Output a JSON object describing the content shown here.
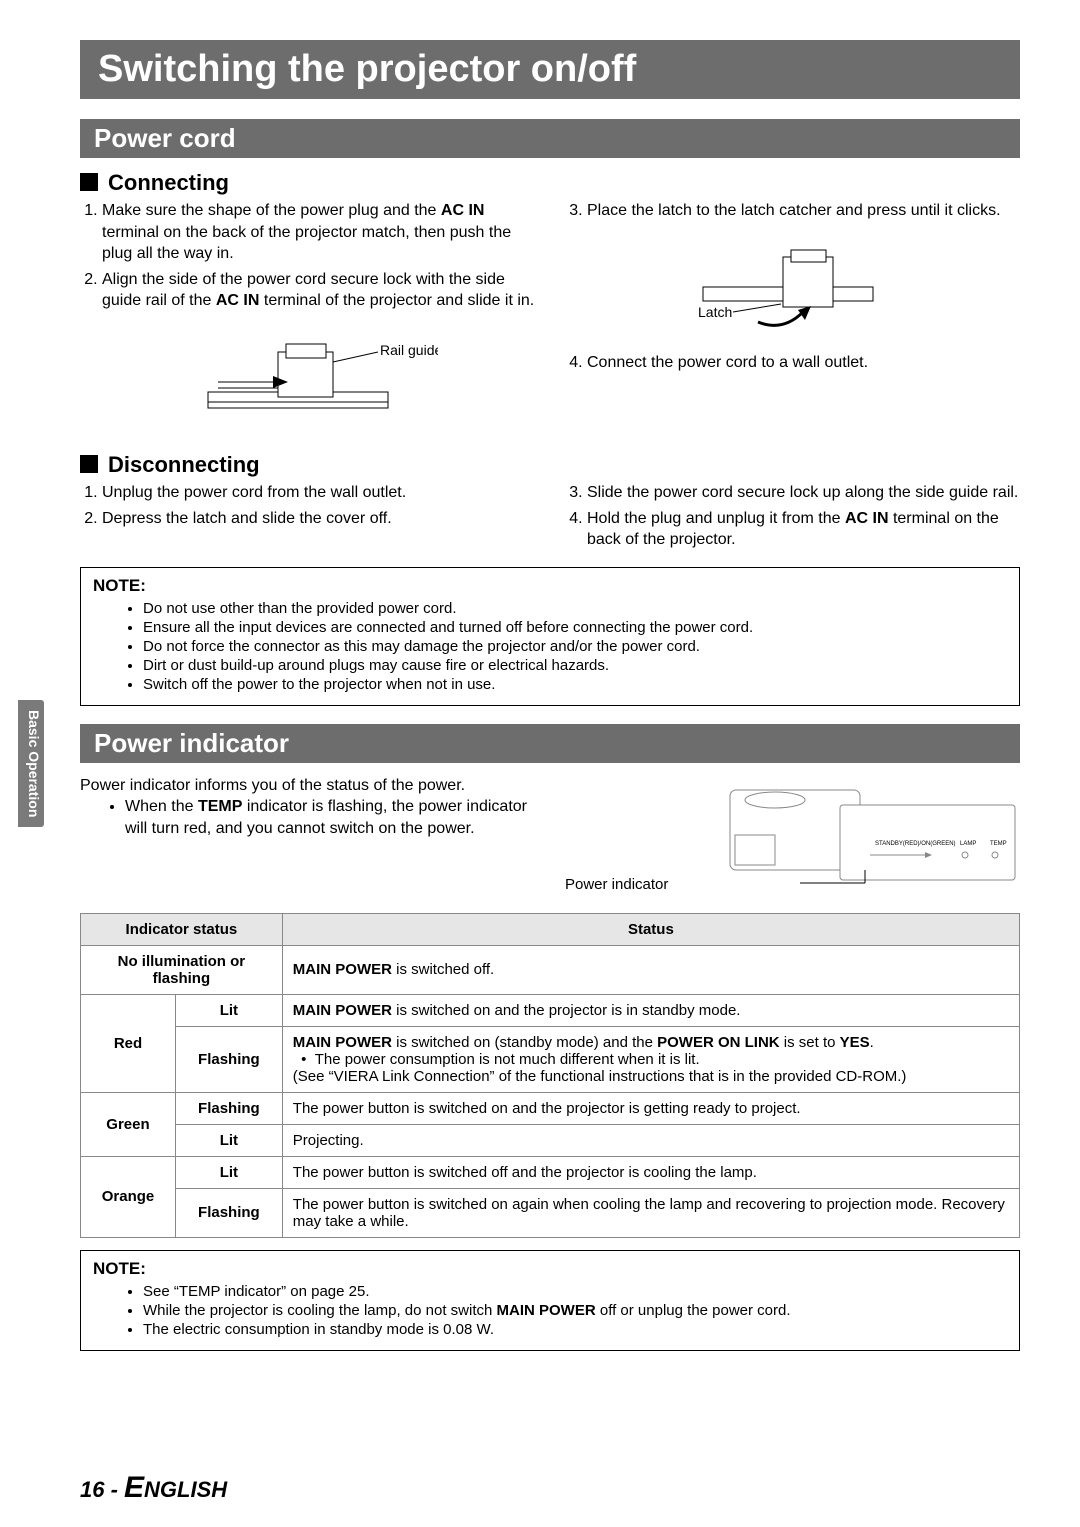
{
  "sideTab": "Basic Operation",
  "title": "Switching the projector on/off",
  "section1": {
    "bar": "Power cord",
    "connecting": {
      "heading": "Connecting",
      "figLabel1": "Rail guide",
      "figLabel2": "Latch",
      "leftItems": [
        "Make sure the shape of the power plug and the <b>AC IN</b> terminal on the back of the projector match, then push the plug all the way in.",
        "Align the side of the power cord secure lock with the side guide rail of the <b>AC IN</b> terminal of the projector and slide it in."
      ],
      "rightItems": [
        "Place the latch to the latch catcher and press until it clicks.",
        "Connect the power cord to a wall outlet."
      ]
    },
    "disconnecting": {
      "heading": "Disconnecting",
      "leftItems": [
        "Unplug the power cord from the wall outlet.",
        "Depress the latch and slide the cover off."
      ],
      "rightItems": [
        "Slide the power cord secure lock up along the side guide rail.",
        "Hold the plug and unplug it from the <b>AC IN</b> terminal on the back of the projector."
      ]
    },
    "note": {
      "title": "NOTE:",
      "items": [
        "Do not use other than the provided power cord.",
        "Ensure all the input devices are connected and turned off before connecting the power cord.",
        "Do not force the connector as this may damage the projector and/or the power cord.",
        "Dirt or dust build-up around plugs may cause fire or electrical hazards.",
        "Switch off the power to the projector when not in use."
      ]
    }
  },
  "section2": {
    "bar": "Power indicator",
    "intro": "Power indicator informs you of the status of the power.",
    "bullet": "When the <b>TEMP</b> indicator is flashing, the power indicator will turn red, and you cannot switch on the power.",
    "piCaption": "Power indicator",
    "panelLabels": {
      "a": "STANDBY(RED)/ON(GREEN)",
      "b": "LAMP",
      "c": "TEMP"
    },
    "table": {
      "h1": "Indicator status",
      "h2": "Status",
      "rows": [
        {
          "c1": "No illumination or flashing",
          "c1span": 2,
          "c3": "<b>MAIN POWER</b> is switched off."
        },
        {
          "c1": "Red",
          "c1rowspan": 2,
          "c2": "Lit",
          "c3": "<b>MAIN POWER</b> is switched on and the projector is in standby mode."
        },
        {
          "c2": "Flashing",
          "c3": "<b>MAIN POWER</b> is switched on (standby mode) and the <b>POWER ON LINK</b> is set to <b>YES</b>.<br>&nbsp;&nbsp;•&nbsp;&nbsp;The power consumption is not much different when it is lit.<br>(See “VIERA Link Connection” of the functional instructions that is in the provided CD-ROM.)"
        },
        {
          "c1": "Green",
          "c1rowspan": 2,
          "c2": "Flashing",
          "c3": "The power button is switched on and the projector is getting ready to project."
        },
        {
          "c2": "Lit",
          "c3": "Projecting."
        },
        {
          "c1": "Orange",
          "c1rowspan": 2,
          "c2": "Lit",
          "c3": "The power button is switched off and the projector is cooling the lamp."
        },
        {
          "c2": "Flashing",
          "c3": "The power button is switched on again when cooling the lamp and recovering to projection mode. Recovery may take a while."
        }
      ]
    },
    "note": {
      "title": "NOTE:",
      "items": [
        "See “TEMP indicator” on page 25.",
        "While the projector is cooling the lamp, do not switch <b>MAIN POWER</b> off or unplug the power cord.",
        "The electric consumption in standby mode is 0.08 W."
      ]
    }
  },
  "footer": {
    "pageNum": "16 - ",
    "lang1": "E",
    "lang2": "NGLISH"
  }
}
